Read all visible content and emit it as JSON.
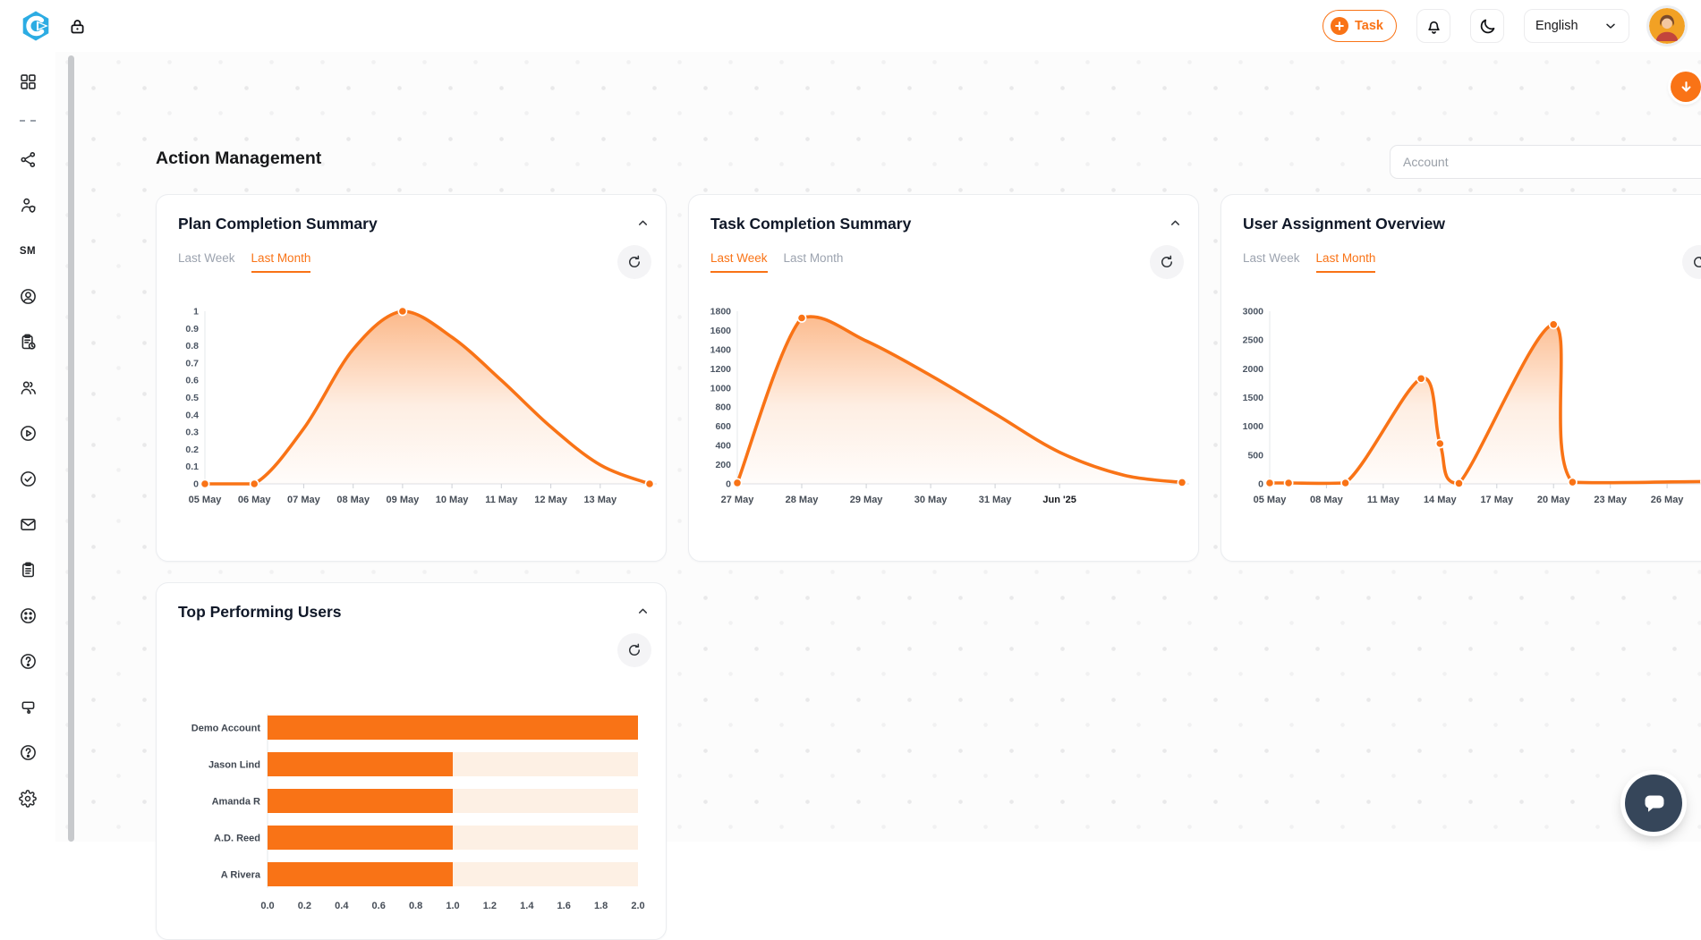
{
  "colors": {
    "accent": "#f97316",
    "logo_blue": "#2cace3",
    "chat_bubble": "#36465a",
    "bar_track": "#fdf0e4"
  },
  "header": {
    "task_button_label": "Task",
    "language": "English",
    "icons": [
      "app-logo",
      "lock-icon",
      "plus-icon",
      "bell-icon",
      "moon-icon",
      "chevron-down-icon",
      "user-avatar"
    ]
  },
  "sidebar": {
    "items": [
      {
        "icon": "dashboard-grid-icon"
      },
      {
        "icon": "divider"
      },
      {
        "icon": "hub-icon"
      },
      {
        "icon": "user-shield-icon"
      },
      {
        "icon": "sm-label",
        "label": "SM"
      },
      {
        "icon": "user-circle-icon"
      },
      {
        "icon": "clipboard-clock-icon"
      },
      {
        "icon": "users-icon"
      },
      {
        "icon": "play-circle-icon"
      },
      {
        "icon": "check-circle-icon"
      },
      {
        "icon": "mail-icon"
      },
      {
        "icon": "clipboard-icon"
      },
      {
        "icon": "circle-dots-icon"
      },
      {
        "icon": "help-circle-icon"
      },
      {
        "icon": "tooltip-tag-icon"
      },
      {
        "icon": "question-circle-icon"
      },
      {
        "icon": "settings-gear-icon"
      }
    ]
  },
  "page": {
    "title": "Action Management",
    "account_placeholder": "Account"
  },
  "chart_data": [
    {
      "id": "plan",
      "type": "area",
      "title": "Plan Completion Summary",
      "tabs": [
        "Last Week",
        "Last Month"
      ],
      "active_tab": "Last Month",
      "color": "#f97316",
      "ylim": [
        0,
        1
      ],
      "yticks": [
        0,
        0.1,
        0.2,
        0.3,
        0.4,
        0.5,
        0.6,
        0.7,
        0.8,
        0.9,
        1
      ],
      "xdomain": [
        0,
        9
      ],
      "xticks": [
        {
          "x": 0,
          "label": "05 May"
        },
        {
          "x": 1,
          "label": "06 May"
        },
        {
          "x": 2,
          "label": "07 May"
        },
        {
          "x": 3,
          "label": "08 May"
        },
        {
          "x": 4,
          "label": "09 May"
        },
        {
          "x": 5,
          "label": "10 May"
        },
        {
          "x": 6,
          "label": "11 May"
        },
        {
          "x": 7,
          "label": "12 May"
        },
        {
          "x": 8,
          "label": "13 May"
        }
      ],
      "points": [
        {
          "x": 0,
          "y": 0,
          "m": 1
        },
        {
          "x": 1,
          "y": 0,
          "m": 1
        },
        {
          "x": 2,
          "y": 0.32
        },
        {
          "x": 3,
          "y": 0.78
        },
        {
          "x": 4,
          "y": 1,
          "m": 1
        },
        {
          "x": 5,
          "y": 0.85
        },
        {
          "x": 6,
          "y": 0.6
        },
        {
          "x": 7,
          "y": 0.33
        },
        {
          "x": 8,
          "y": 0.11
        },
        {
          "x": 9,
          "y": 0,
          "m": 1
        }
      ]
    },
    {
      "id": "task",
      "type": "area",
      "title": "Task Completion Summary",
      "tabs": [
        "Last Week",
        "Last Month"
      ],
      "active_tab": "Last Week",
      "color": "#f97316",
      "ylim": [
        0,
        1800
      ],
      "yticks": [
        0,
        200,
        400,
        600,
        800,
        1000,
        1200,
        1400,
        1600,
        1800
      ],
      "xdomain": [
        0,
        6.9
      ],
      "xticks": [
        {
          "x": 0,
          "label": "27 May"
        },
        {
          "x": 1,
          "label": "28 May"
        },
        {
          "x": 2,
          "label": "29 May"
        },
        {
          "x": 3,
          "label": "30 May"
        },
        {
          "x": 4,
          "label": "31 May"
        },
        {
          "x": 5,
          "label": "Jun '25",
          "bold": true
        }
      ],
      "points": [
        {
          "x": 0,
          "y": 10,
          "m": 1
        },
        {
          "x": 1,
          "y": 1730,
          "m": 1
        },
        {
          "x": 2,
          "y": 1490
        },
        {
          "x": 3,
          "y": 1130
        },
        {
          "x": 4,
          "y": 730
        },
        {
          "x": 5,
          "y": 330
        },
        {
          "x": 6,
          "y": 90
        },
        {
          "x": 6.9,
          "y": 15,
          "m": 1
        }
      ]
    },
    {
      "id": "assign",
      "type": "area",
      "title": "User Assignment Overview",
      "tabs": [
        "Last Week",
        "Last Month"
      ],
      "active_tab": "Last Month",
      "color": "#f97316",
      "ylim": [
        0,
        3000
      ],
      "yticks": [
        0,
        500,
        1000,
        1500,
        2000,
        2500,
        3000
      ],
      "xdomain": [
        0,
        23.5
      ],
      "xticks": [
        {
          "x": 0,
          "label": "05 May"
        },
        {
          "x": 3,
          "label": "08 May"
        },
        {
          "x": 6,
          "label": "11 May"
        },
        {
          "x": 9,
          "label": "14 May"
        },
        {
          "x": 12,
          "label": "17 May"
        },
        {
          "x": 15,
          "label": "20 May"
        },
        {
          "x": 18,
          "label": "23 May"
        },
        {
          "x": 21,
          "label": "26 May"
        }
      ],
      "points": [
        {
          "x": 0,
          "y": 15,
          "m": 1
        },
        {
          "x": 1,
          "y": 15,
          "m": 1
        },
        {
          "x": 4,
          "y": 15,
          "m": 1
        },
        {
          "x": 8,
          "y": 1830,
          "m": 1
        },
        {
          "x": 9,
          "y": 700,
          "m": 1
        },
        {
          "x": 10,
          "y": 10,
          "m": 1
        },
        {
          "x": 15,
          "y": 2770,
          "m": 1
        },
        {
          "x": 16,
          "y": 30,
          "m": 1
        },
        {
          "x": 23,
          "y": 40,
          "m": 1
        },
        {
          "x": 23.5,
          "y": 5,
          "m": 1
        }
      ]
    },
    {
      "id": "top_users",
      "type": "bar",
      "title": "Top Performing Users",
      "color": "#f97316",
      "categories": [
        "Demo Account",
        "Jason Lind",
        "Amanda R",
        "A.D. Reed",
        "A Rivera"
      ],
      "values": [
        2,
        1,
        1,
        1,
        1
      ],
      "xlim": [
        0,
        2
      ],
      "xtick_labels": [
        "0.0",
        "0.2",
        "0.4",
        "0.6",
        "0.8",
        "1.0",
        "1.2",
        "1.4",
        "1.6",
        "1.8",
        "2.0"
      ]
    }
  ]
}
